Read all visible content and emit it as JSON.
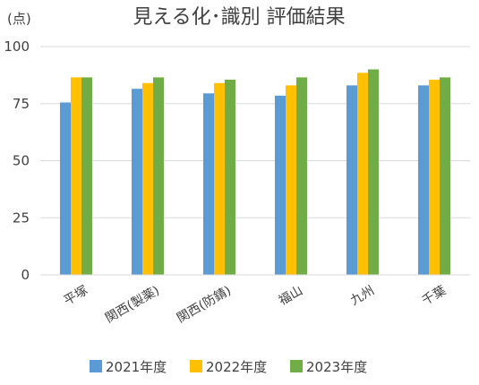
{
  "chart_data": {
    "type": "bar",
    "title": "見える化･識別 評価結果",
    "ylabel": "(点)",
    "ylim": [
      0,
      100
    ],
    "yticks": [
      0,
      25,
      50,
      75,
      100
    ],
    "grid": true,
    "legend_position": "bottom",
    "categories": [
      "平塚",
      "関西(製薬)",
      "関西(防錆)",
      "福山",
      "九州",
      "千葉"
    ],
    "series": [
      {
        "name": "2021年度",
        "color": "#5B9BD5",
        "values": [
          75.5,
          81.5,
          79.5,
          78.5,
          83.0,
          83.0
        ]
      },
      {
        "name": "2022年度",
        "color": "#FFC000",
        "values": [
          86.5,
          84.0,
          84.0,
          83.0,
          88.5,
          85.5
        ]
      },
      {
        "name": "2023年度",
        "color": "#70AD47",
        "values": [
          86.5,
          86.5,
          85.5,
          86.5,
          90.0,
          86.5
        ]
      }
    ]
  }
}
